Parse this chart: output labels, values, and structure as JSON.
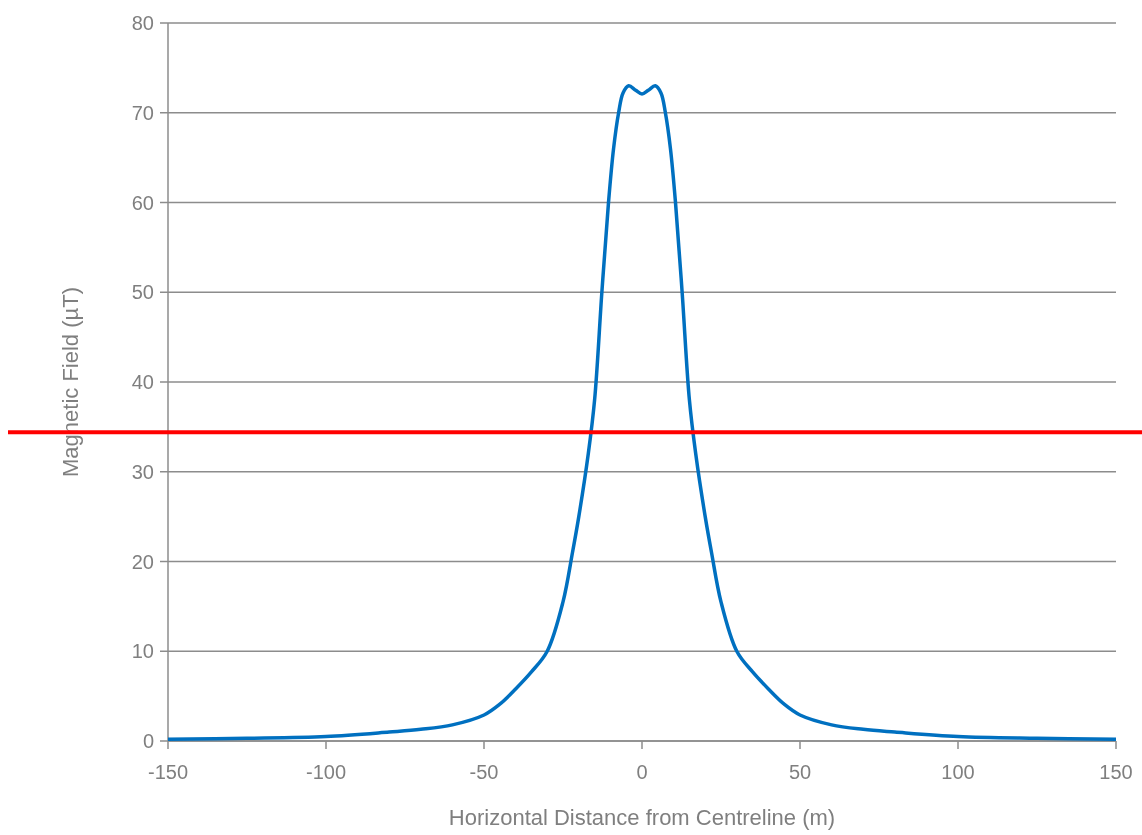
{
  "chart_data": {
    "type": "line",
    "xlabel": "Horizontal Distance from Centreline (m)",
    "ylabel": "Magnetic Field (µT)",
    "xlim": [
      -150,
      150
    ],
    "xticks": [
      -150,
      -100,
      -50,
      0,
      50,
      100,
      150
    ],
    "ylim": [
      0,
      80
    ],
    "yticks": [
      0,
      10,
      20,
      30,
      40,
      50,
      60,
      70,
      80
    ],
    "grid": "y",
    "series": [
      {
        "color": "#0070c0",
        "x": [
          -150,
          -125,
          -100,
          -80,
          -70,
          -60,
          -50,
          -45,
          -40,
          -35,
          -30,
          -25,
          -22,
          -20,
          -17,
          -15,
          -12.7,
          -10.6,
          -9,
          -7.4,
          -6,
          -4.2,
          -2,
          0,
          2,
          4.2,
          6,
          7.4,
          9,
          10.6,
          12.7,
          15,
          17,
          20,
          22,
          25,
          30,
          35,
          40,
          45,
          50,
          60,
          70,
          80,
          100,
          125,
          150
        ],
        "values": [
          0.2,
          0.3,
          0.5,
          1.0,
          1.3,
          1.8,
          2.9,
          4.1,
          5.8,
          7.7,
          10,
          15.5,
          21,
          25,
          32,
          38,
          50,
          60,
          66,
          70,
          72.2,
          73,
          72.5,
          72.1,
          72.5,
          73,
          72.2,
          70,
          66,
          60,
          50,
          38,
          32,
          25,
          21,
          15.5,
          10,
          7.7,
          5.8,
          4.1,
          2.9,
          1.8,
          1.3,
          1.0,
          0.5,
          0.3,
          0.2
        ]
      }
    ],
    "ref_lines": [
      {
        "axis": "y",
        "value": 34.4,
        "color": "#ff0000"
      }
    ]
  }
}
